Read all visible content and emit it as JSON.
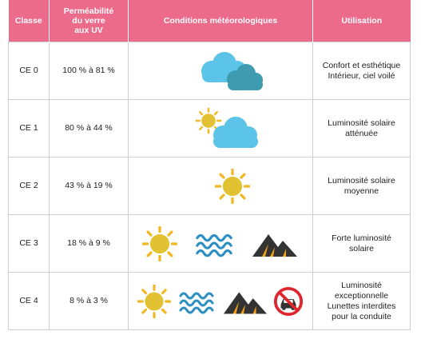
{
  "headers": {
    "classe": "Classe",
    "permeabilite": [
      "Perméabilité",
      "du verre",
      "aux UV"
    ],
    "conditions": "Conditions météorologiques",
    "utilisation": "Utilisation"
  },
  "rows": [
    {
      "classe": "CE 0",
      "uv": "100 % à 81 %",
      "icons": [
        "cloud-icon"
      ],
      "usage": [
        "Confort et esthétique",
        "Intérieur, ciel voilé"
      ]
    },
    {
      "classe": "CE 1",
      "uv": "80 % à 44 %",
      "icons": [
        "sun-cloud-icon"
      ],
      "usage": [
        "Luminosité solaire",
        "atténuée"
      ]
    },
    {
      "classe": "CE 2",
      "uv": "43 % à 19 %",
      "icons": [
        "sun-icon"
      ],
      "usage": [
        "Luminosité solaire",
        "moyenne"
      ]
    },
    {
      "classe": "CE 3",
      "uv": "18 % à 9 %",
      "icons": [
        "sun-icon",
        "waves-icon",
        "mountain-icon"
      ],
      "usage": [
        "Forte luminosité",
        "solaire"
      ]
    },
    {
      "classe": "CE 4",
      "uv": "8 % à 3 %",
      "icons": [
        "sun-icon",
        "waves-icon",
        "mountain-icon",
        "no-driving-icon"
      ],
      "usage": [
        "Luminosité",
        "exceptionnelle",
        "Lunettes interdites",
        "pour la conduite"
      ]
    }
  ],
  "colors": {
    "header": "#ec6a8a",
    "cloud_light": "#5bc4e8",
    "cloud_dark": "#3e9bb0",
    "sun": "#e2c232",
    "ray": "#f2b824",
    "wave": "#2b8fc4",
    "mountain": "#333333",
    "mountain_accent": "#f2a11a",
    "forbidden": "#e0262d"
  }
}
